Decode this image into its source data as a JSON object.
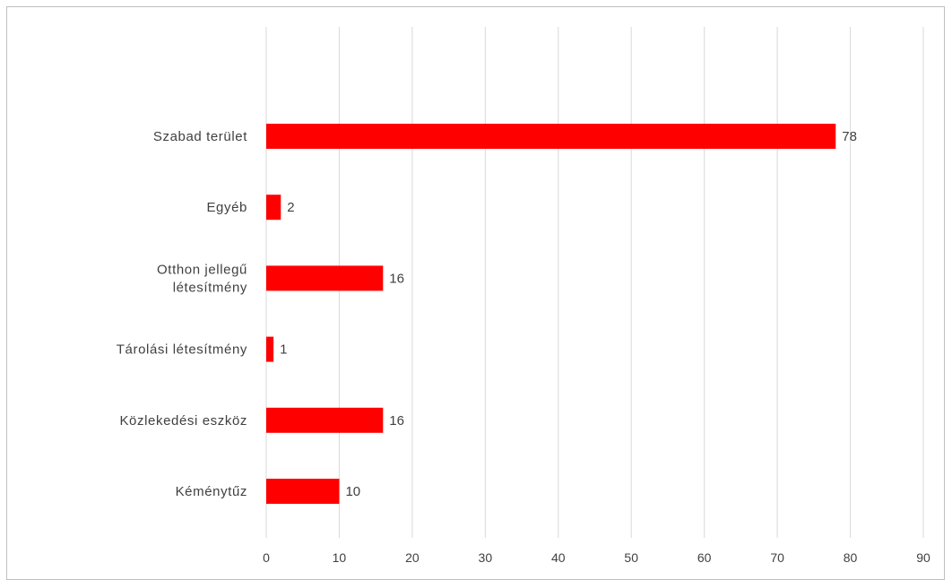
{
  "chart_data": {
    "type": "bar",
    "orientation": "horizontal",
    "categories": [
      [
        "Szabad terület"
      ],
      [
        "Egyéb"
      ],
      [
        "Otthon jellegű",
        "létesítmény"
      ],
      [
        "Tárolási létesítmény"
      ],
      [
        "Közlekedési eszköz"
      ],
      [
        "Kéménytűz"
      ]
    ],
    "values": [
      78,
      2,
      16,
      1,
      16,
      10
    ],
    "data_labels": [
      "78",
      "2",
      "16",
      "1",
      "16",
      "10"
    ],
    "xlim": [
      0,
      90
    ],
    "x_ticks": [
      "0",
      "10",
      "20",
      "30",
      "40",
      "50",
      "60",
      "70",
      "80",
      "90"
    ],
    "bar_color": "#ff0000",
    "gridline_color": "#d9d9d9",
    "grid": true,
    "legend": "none"
  }
}
